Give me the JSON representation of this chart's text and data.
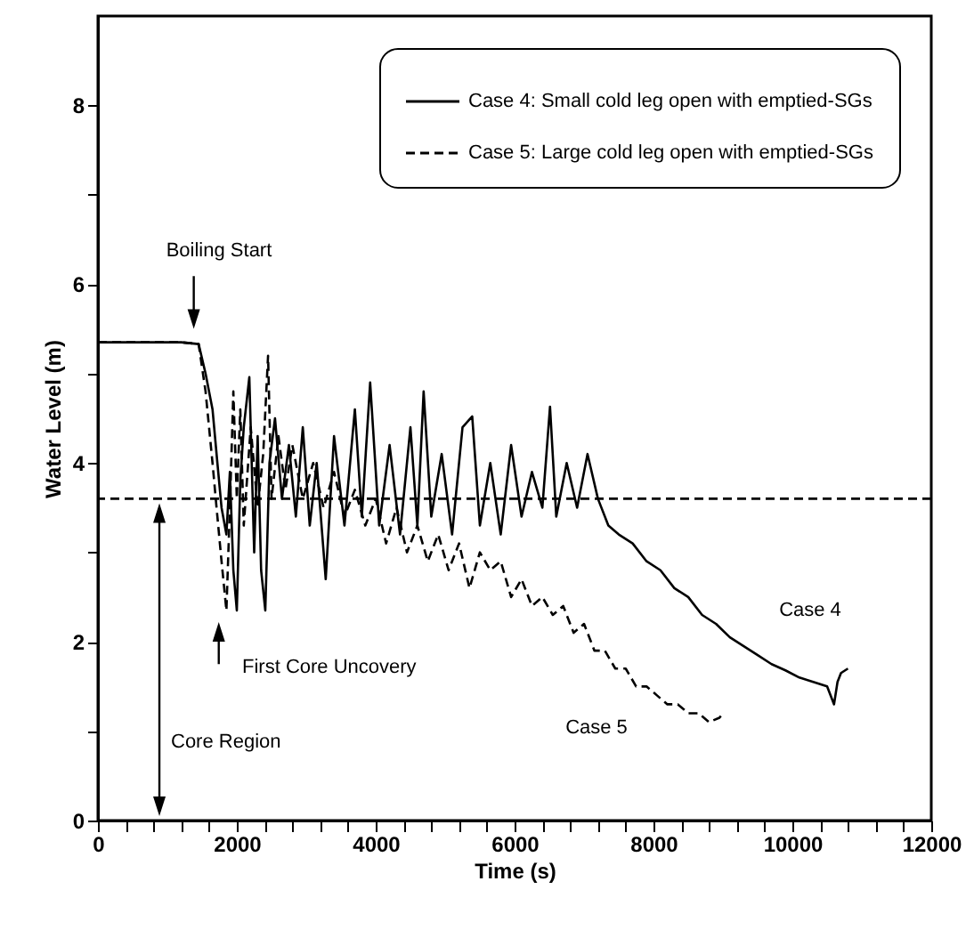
{
  "chart_data": {
    "type": "line",
    "xlabel": "Time (s)",
    "ylabel": "Water Level (m)",
    "xlim": [
      0,
      12000
    ],
    "ylim": [
      0,
      9
    ],
    "xticks": [
      0,
      {
        "value": 400,
        "label": null
      },
      {
        "value": 800,
        "label": null
      },
      {
        "value": 1200,
        "label": null
      },
      {
        "value": 1600,
        "label": null
      },
      2000,
      {
        "value": 2400,
        "label": null
      },
      {
        "value": 2800,
        "label": null
      },
      {
        "value": 3200,
        "label": null
      },
      {
        "value": 3600,
        "label": null
      },
      4000,
      {
        "value": 4400,
        "label": null
      },
      {
        "value": 4800,
        "label": null
      },
      {
        "value": 5200,
        "label": null
      },
      {
        "value": 5600,
        "label": null
      },
      6000,
      {
        "value": 6400,
        "label": null
      },
      {
        "value": 6800,
        "label": null
      },
      {
        "value": 7200,
        "label": null
      },
      {
        "value": 7600,
        "label": null
      },
      8000,
      {
        "value": 8400,
        "label": null
      },
      {
        "value": 8800,
        "label": null
      },
      {
        "value": 9200,
        "label": null
      },
      {
        "value": 9600,
        "label": null
      },
      10000,
      {
        "value": 10400,
        "label": null
      },
      {
        "value": 10800,
        "label": null
      },
      {
        "value": 11200,
        "label": null
      },
      {
        "value": 11600,
        "label": null
      },
      12000
    ],
    "yticks": [
      0,
      {
        "value": 1,
        "label": null
      },
      2,
      {
        "value": 3,
        "label": null
      },
      4,
      {
        "value": 5,
        "label": null
      },
      6,
      {
        "value": 7,
        "label": null
      },
      8
    ],
    "grid": false,
    "legend": "top right",
    "marker": "none",
    "series": [
      {
        "name": "Case 4: Small cold leg open with emptied-SGs",
        "color": "#000000",
        "line_style": "solid",
        "x": [
          0,
          400,
          800,
          1200,
          1450,
          1550,
          1650,
          1720,
          1780,
          1850,
          1900,
          1950,
          2000,
          2050,
          2100,
          2180,
          2250,
          2300,
          2350,
          2410,
          2470,
          2550,
          2650,
          2750,
          2850,
          2950,
          3050,
          3150,
          3280,
          3400,
          3550,
          3700,
          3800,
          3920,
          4050,
          4200,
          4350,
          4500,
          4600,
          4690,
          4800,
          4950,
          5100,
          5250,
          5390,
          5500,
          5650,
          5800,
          5950,
          6100,
          6250,
          6400,
          6510,
          6600,
          6750,
          6900,
          7050,
          7200,
          7350,
          7500,
          7700,
          7900,
          8100,
          8300,
          8500,
          8700,
          8900,
          9100,
          9300,
          9500,
          9700,
          9900,
          10100,
          10300,
          10500,
          10600,
          10650,
          10700,
          10800
        ],
        "values": [
          5.35,
          5.35,
          5.35,
          5.35,
          5.33,
          5.0,
          4.6,
          4.0,
          3.5,
          3.2,
          3.9,
          2.8,
          2.35,
          3.8,
          4.4,
          4.96,
          3.0,
          4.3,
          2.8,
          2.35,
          4.0,
          4.5,
          3.6,
          4.2,
          3.4,
          4.4,
          3.3,
          4.0,
          2.7,
          4.3,
          3.3,
          4.6,
          3.4,
          4.9,
          3.3,
          4.2,
          3.2,
          4.4,
          3.3,
          4.8,
          3.4,
          4.1,
          3.2,
          4.4,
          4.52,
          3.3,
          4.0,
          3.2,
          4.2,
          3.4,
          3.9,
          3.5,
          4.63,
          3.4,
          4.0,
          3.5,
          4.1,
          3.6,
          3.3,
          3.2,
          3.1,
          2.9,
          2.8,
          2.6,
          2.5,
          2.3,
          2.2,
          2.05,
          1.95,
          1.85,
          1.75,
          1.68,
          1.6,
          1.55,
          1.5,
          1.3,
          1.55,
          1.65,
          1.7
        ]
      },
      {
        "name": "Case 5: Large cold leg open with emptied-SGs",
        "color": "#000000",
        "line_style": "dashed",
        "x": [
          0,
          400,
          800,
          1200,
          1450,
          1550,
          1650,
          1720,
          1780,
          1850,
          1900,
          1950,
          2000,
          2050,
          2100,
          2200,
          2300,
          2380,
          2450,
          2500,
          2600,
          2700,
          2800,
          2950,
          3100,
          3250,
          3400,
          3550,
          3700,
          3850,
          4000,
          4150,
          4300,
          4450,
          4600,
          4750,
          4900,
          5050,
          5200,
          5350,
          5500,
          5650,
          5800,
          5950,
          6100,
          6250,
          6400,
          6550,
          6700,
          6850,
          7000,
          7150,
          7300,
          7450,
          7600,
          7750,
          7900,
          8050,
          8200,
          8350,
          8500,
          8650,
          8800,
          8950,
          9000
        ],
        "values": [
          5.35,
          5.35,
          5.35,
          5.35,
          5.33,
          4.8,
          4.0,
          3.4,
          2.9,
          2.35,
          3.5,
          4.8,
          3.6,
          4.6,
          3.3,
          4.4,
          3.5,
          4.1,
          5.2,
          3.6,
          4.3,
          3.7,
          4.2,
          3.6,
          4.0,
          3.5,
          3.9,
          3.4,
          3.7,
          3.3,
          3.6,
          3.1,
          3.5,
          3.0,
          3.3,
          2.9,
          3.2,
          2.8,
          3.1,
          2.6,
          3.0,
          2.8,
          2.9,
          2.5,
          2.7,
          2.4,
          2.5,
          2.3,
          2.4,
          2.1,
          2.2,
          1.9,
          1.9,
          1.7,
          1.7,
          1.5,
          1.5,
          1.4,
          1.3,
          1.3,
          1.2,
          1.2,
          1.1,
          1.15,
          1.2
        ]
      }
    ],
    "ref_lines": [
      {
        "axis": "y",
        "value": 3.6,
        "color": "#000000",
        "line_style": "dashed"
      }
    ],
    "annotations": [
      "Boiling Start",
      "First Core Uncovery",
      "Core Region",
      "Case 4",
      "Case 5"
    ]
  }
}
